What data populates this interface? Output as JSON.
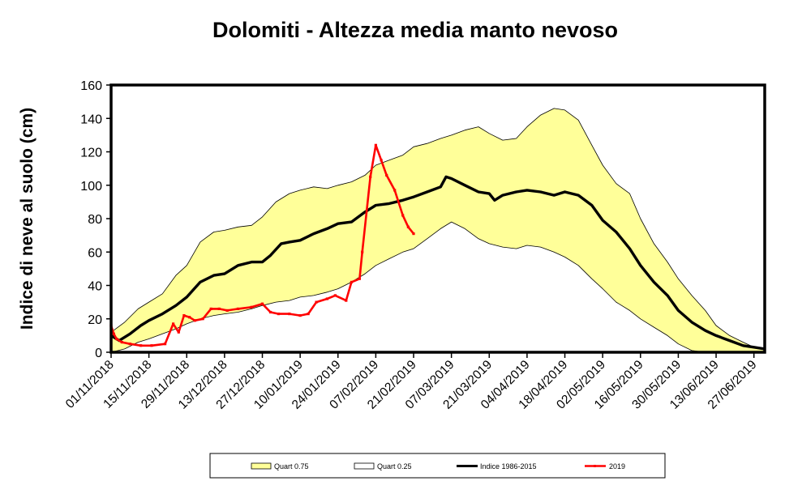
{
  "chart_data": {
    "type": "area",
    "title": "Dolomiti - Altezza media manto nevoso",
    "xlabel": "",
    "ylabel": "Indice di neve al suolo (cm)",
    "ylim": [
      0,
      160
    ],
    "yticks": [
      0,
      20,
      40,
      60,
      80,
      100,
      120,
      140,
      160
    ],
    "xlim": [
      "01/11/2018",
      "01/07/2019"
    ],
    "xticks": [
      "01/11/2018",
      "15/11/2018",
      "29/11/2018",
      "13/12/2018",
      "27/12/2018",
      "10/01/2019",
      "24/01/2019",
      "07/02/2019",
      "21/02/2019",
      "07/03/2019",
      "21/03/2019",
      "04/04/2019",
      "18/04/2019",
      "02/05/2019",
      "16/05/2019",
      "30/05/2019",
      "13/06/2019",
      "27/06/2019"
    ],
    "grid": false,
    "legend_position": "bottom",
    "colors": {
      "band": "#ffff99",
      "band_edge": "#000000",
      "indice": "#000000",
      "season_2019": "#ff0000",
      "frame": "#000000"
    },
    "series": [
      {
        "name": "Quart 0.75",
        "x": [
          "01/11/2018",
          "06/11/2018",
          "11/11/2018",
          "15/11/2018",
          "20/11/2018",
          "25/11/2018",
          "29/11/2018",
          "04/12/2018",
          "09/12/2018",
          "13/12/2018",
          "18/12/2018",
          "23/12/2018",
          "27/12/2018",
          "01/01/2019",
          "06/01/2019",
          "10/01/2019",
          "15/01/2019",
          "20/01/2019",
          "24/01/2019",
          "29/01/2019",
          "03/02/2019",
          "07/02/2019",
          "12/02/2019",
          "17/02/2019",
          "21/02/2019",
          "26/02/2019",
          "03/03/2019",
          "07/03/2019",
          "12/03/2019",
          "17/03/2019",
          "21/03/2019",
          "26/03/2019",
          "31/03/2019",
          "04/04/2019",
          "09/04/2019",
          "14/04/2019",
          "18/04/2019",
          "23/04/2019",
          "28/04/2019",
          "02/05/2019",
          "07/05/2019",
          "12/05/2019",
          "16/05/2019",
          "21/05/2019",
          "26/05/2019",
          "30/05/2019",
          "04/06/2019",
          "09/06/2019",
          "13/06/2019",
          "18/06/2019",
          "23/06/2019",
          "27/06/2019",
          "01/07/2019"
        ],
        "values": [
          12,
          18,
          26,
          30,
          35,
          46,
          52,
          66,
          72,
          73,
          75,
          76,
          81,
          90,
          95,
          97,
          99,
          98,
          100,
          102,
          106,
          112,
          115,
          118,
          123,
          125,
          128,
          130,
          133,
          135,
          131,
          127,
          128,
          135,
          142,
          146,
          145,
          139,
          124,
          112,
          101,
          95,
          80,
          65,
          54,
          44,
          34,
          25,
          16,
          10,
          6,
          3,
          2
        ]
      },
      {
        "name": "Quart 0.25",
        "x": [
          "01/11/2018",
          "06/11/2018",
          "11/11/2018",
          "15/11/2018",
          "20/11/2018",
          "25/11/2018",
          "29/11/2018",
          "04/12/2018",
          "09/12/2018",
          "13/12/2018",
          "18/12/2018",
          "23/12/2018",
          "27/12/2018",
          "01/01/2019",
          "06/01/2019",
          "10/01/2019",
          "15/01/2019",
          "20/01/2019",
          "24/01/2019",
          "29/01/2019",
          "03/02/2019",
          "07/02/2019",
          "12/02/2019",
          "17/02/2019",
          "21/02/2019",
          "26/02/2019",
          "03/03/2019",
          "07/03/2019",
          "12/03/2019",
          "17/03/2019",
          "21/03/2019",
          "26/03/2019",
          "31/03/2019",
          "04/04/2019",
          "09/04/2019",
          "14/04/2019",
          "18/04/2019",
          "23/04/2019",
          "28/04/2019",
          "02/05/2019",
          "07/05/2019",
          "12/05/2019",
          "16/05/2019",
          "21/05/2019",
          "26/05/2019",
          "30/05/2019",
          "04/06/2019",
          "09/06/2019",
          "13/06/2019",
          "18/06/2019",
          "23/06/2019",
          "27/06/2019",
          "01/07/2019"
        ],
        "values": [
          0,
          2,
          6,
          8,
          11,
          14,
          17,
          20,
          22,
          23,
          24,
          26,
          28,
          30,
          31,
          33,
          34,
          36,
          38,
          42,
          47,
          52,
          56,
          60,
          62,
          68,
          74,
          78,
          74,
          68,
          65,
          63,
          62,
          64,
          63,
          60,
          57,
          52,
          44,
          38,
          30,
          25,
          20,
          15,
          10,
          5,
          1,
          0,
          0,
          0,
          0,
          0,
          0
        ]
      },
      {
        "name": "Indice 1986-2015",
        "x": [
          "01/11/2018",
          "04/11/2018",
          "08/11/2018",
          "12/11/2018",
          "15/11/2018",
          "20/11/2018",
          "25/11/2018",
          "29/11/2018",
          "04/12/2018",
          "09/12/2018",
          "13/12/2018",
          "18/12/2018",
          "23/12/2018",
          "27/12/2018",
          "30/12/2018",
          "03/01/2019",
          "06/01/2019",
          "10/01/2019",
          "15/01/2019",
          "20/01/2019",
          "24/01/2019",
          "29/01/2019",
          "03/02/2019",
          "07/02/2019",
          "12/02/2019",
          "17/02/2019",
          "21/02/2019",
          "26/02/2019",
          "03/03/2019",
          "05/03/2019",
          "07/03/2019",
          "12/03/2019",
          "17/03/2019",
          "21/03/2019",
          "23/03/2019",
          "26/03/2019",
          "31/03/2019",
          "04/04/2019",
          "09/04/2019",
          "14/04/2019",
          "18/04/2019",
          "23/04/2019",
          "28/04/2019",
          "02/05/2019",
          "07/05/2019",
          "12/05/2019",
          "16/05/2019",
          "21/05/2019",
          "26/05/2019",
          "30/05/2019",
          "04/06/2019",
          "09/06/2019",
          "13/06/2019",
          "18/06/2019",
          "23/06/2019",
          "27/06/2019",
          "01/07/2019"
        ],
        "values": [
          10,
          7,
          11,
          16,
          19,
          23,
          28,
          33,
          42,
          46,
          47,
          52,
          54,
          54,
          58,
          65,
          66,
          67,
          71,
          74,
          77,
          78,
          84,
          88,
          89,
          91,
          93,
          96,
          99,
          105,
          104,
          100,
          96,
          95,
          91,
          94,
          96,
          97,
          96,
          94,
          96,
          94,
          88,
          79,
          72,
          62,
          52,
          42,
          34,
          25,
          18,
          13,
          10,
          7,
          4,
          3,
          2
        ]
      },
      {
        "name": "2019",
        "x": [
          "01/11/2018",
          "02/11/2018",
          "03/11/2018",
          "05/11/2018",
          "08/11/2018",
          "12/11/2018",
          "16/11/2018",
          "21/11/2018",
          "24/11/2018",
          "26/11/2018",
          "28/11/2018",
          "30/11/2018",
          "02/12/2018",
          "05/12/2018",
          "08/12/2018",
          "11/12/2018",
          "14/12/2018",
          "18/12/2018",
          "23/12/2018",
          "27/12/2018",
          "30/12/2018",
          "02/01/2019",
          "06/01/2019",
          "10/01/2019",
          "13/01/2019",
          "16/01/2019",
          "20/01/2019",
          "23/01/2019",
          "27/01/2019",
          "29/01/2019",
          "01/02/2019",
          "02/02/2019",
          "05/02/2019",
          "07/02/2019",
          "09/02/2019",
          "11/02/2019",
          "14/02/2019",
          "17/02/2019",
          "19/02/2019",
          "21/02/2019"
        ],
        "values": [
          16,
          11,
          8,
          6,
          5,
          4,
          4,
          5,
          17,
          12,
          22,
          21,
          19,
          20,
          26,
          26,
          25,
          26,
          27,
          29,
          24,
          23,
          23,
          22,
          23,
          30,
          32,
          34,
          31,
          42,
          44,
          60,
          105,
          124,
          115,
          106,
          97,
          82,
          75,
          71
        ]
      }
    ]
  }
}
